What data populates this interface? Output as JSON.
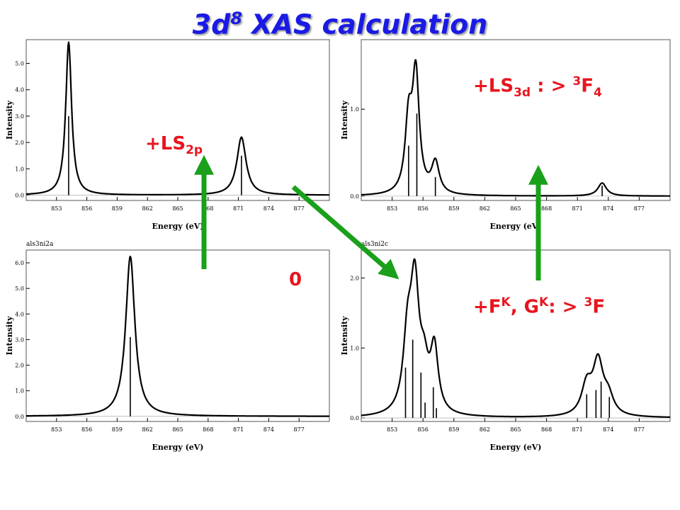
{
  "title": {
    "main": "3d",
    "sup": "8",
    "rest": "  XAS calculation"
  },
  "colors": {
    "title": "#1a1ae6",
    "label": "#e8141e",
    "arrow": "#1aa01a",
    "line": "#000000"
  },
  "labels": {
    "ls2p": {
      "text": "+LS",
      "sub": "2p"
    },
    "zero": {
      "text": "0"
    },
    "ls3d": {
      "text": "+LS",
      "sub": "3d",
      "rest": " : > ",
      "sup": "3",
      "tail": "F",
      "tailsub": "4"
    },
    "fk": {
      "a": "+F",
      "asup": "K",
      "b": ", G",
      "bsup": "K",
      "c": ": > ",
      "csup": "3",
      "d": "F"
    }
  },
  "chart_data": [
    {
      "type": "line",
      "panel": "top-left",
      "title": "",
      "xlabel": "Energy (eV)",
      "ylabel": "Intensity",
      "xlim": [
        850,
        880
      ],
      "ylim": [
        -0.2,
        5.9
      ],
      "xticks": [
        853,
        856,
        859,
        862,
        865,
        868,
        871,
        874,
        877
      ],
      "yticks": [
        0.0,
        1.0,
        2.0,
        3.0,
        4.0,
        5.0
      ],
      "peaks": [
        {
          "x": 854.2,
          "h": 5.8,
          "w": 0.35
        },
        {
          "x": 871.3,
          "h": 2.2,
          "w": 0.55
        }
      ],
      "sticks": [
        {
          "x": 854.2,
          "h": 3.0
        },
        {
          "x": 871.3,
          "h": 1.5
        }
      ]
    },
    {
      "type": "line",
      "panel": "top-right",
      "title": "",
      "xlabel": "Energy (eV)",
      "ylabel": "Intensity",
      "xlim": [
        850,
        880
      ],
      "ylim": [
        -0.05,
        1.8
      ],
      "xticks": [
        853,
        856,
        859,
        862,
        865,
        868,
        871,
        874,
        877
      ],
      "yticks": [
        0.0,
        1.0
      ],
      "peaks": [
        {
          "x": 854.6,
          "h": 0.8,
          "w": 0.4
        },
        {
          "x": 855.3,
          "h": 1.35,
          "w": 0.4
        },
        {
          "x": 857.2,
          "h": 0.36,
          "w": 0.45
        },
        {
          "x": 873.4,
          "h": 0.15,
          "w": 0.5
        }
      ],
      "sticks": [
        {
          "x": 854.6,
          "h": 0.58
        },
        {
          "x": 855.4,
          "h": 0.95
        },
        {
          "x": 857.2,
          "h": 0.22
        },
        {
          "x": 873.4,
          "h": 0.12
        }
      ]
    },
    {
      "type": "line",
      "panel": "bottom-left",
      "title": "als3ni2a",
      "xlabel": "Energy (eV)",
      "ylabel": "Intensity",
      "xlim": [
        850,
        880
      ],
      "ylim": [
        -0.2,
        6.5
      ],
      "xticks": [
        853,
        856,
        859,
        862,
        865,
        868,
        871,
        874,
        877
      ],
      "yticks": [
        0.0,
        1.0,
        2.0,
        3.0,
        4.0,
        5.0,
        6.0
      ],
      "peaks": [
        {
          "x": 860.3,
          "h": 6.25,
          "w": 0.55
        }
      ],
      "sticks": [
        {
          "x": 860.3,
          "h": 3.1
        }
      ]
    },
    {
      "type": "line",
      "panel": "bottom-right",
      "title": "als3ni2c",
      "xlabel": "Energy (eV)",
      "ylabel": "Intensity",
      "xlim": [
        850,
        880
      ],
      "ylim": [
        -0.05,
        2.4
      ],
      "xticks": [
        853,
        856,
        859,
        862,
        865,
        868,
        871,
        874,
        877
      ],
      "yticks": [
        0.0,
        1.0,
        2.0
      ],
      "peaks": [
        {
          "x": 854.5,
          "h": 1.0,
          "w": 0.5
        },
        {
          "x": 855.2,
          "h": 1.75,
          "w": 0.5
        },
        {
          "x": 856.1,
          "h": 0.55,
          "w": 0.5
        },
        {
          "x": 857.1,
          "h": 0.9,
          "w": 0.45
        },
        {
          "x": 871.9,
          "h": 0.42,
          "w": 0.6
        },
        {
          "x": 873.0,
          "h": 0.75,
          "w": 0.6
        },
        {
          "x": 874.0,
          "h": 0.25,
          "w": 0.6
        }
      ],
      "sticks": [
        {
          "x": 854.3,
          "h": 0.72
        },
        {
          "x": 855.0,
          "h": 1.12
        },
        {
          "x": 855.8,
          "h": 0.65
        },
        {
          "x": 856.2,
          "h": 0.22
        },
        {
          "x": 857.0,
          "h": 0.44
        },
        {
          "x": 857.3,
          "h": 0.14
        },
        {
          "x": 871.9,
          "h": 0.34
        },
        {
          "x": 872.8,
          "h": 0.4
        },
        {
          "x": 873.3,
          "h": 0.52
        },
        {
          "x": 874.1,
          "h": 0.3
        }
      ]
    }
  ]
}
